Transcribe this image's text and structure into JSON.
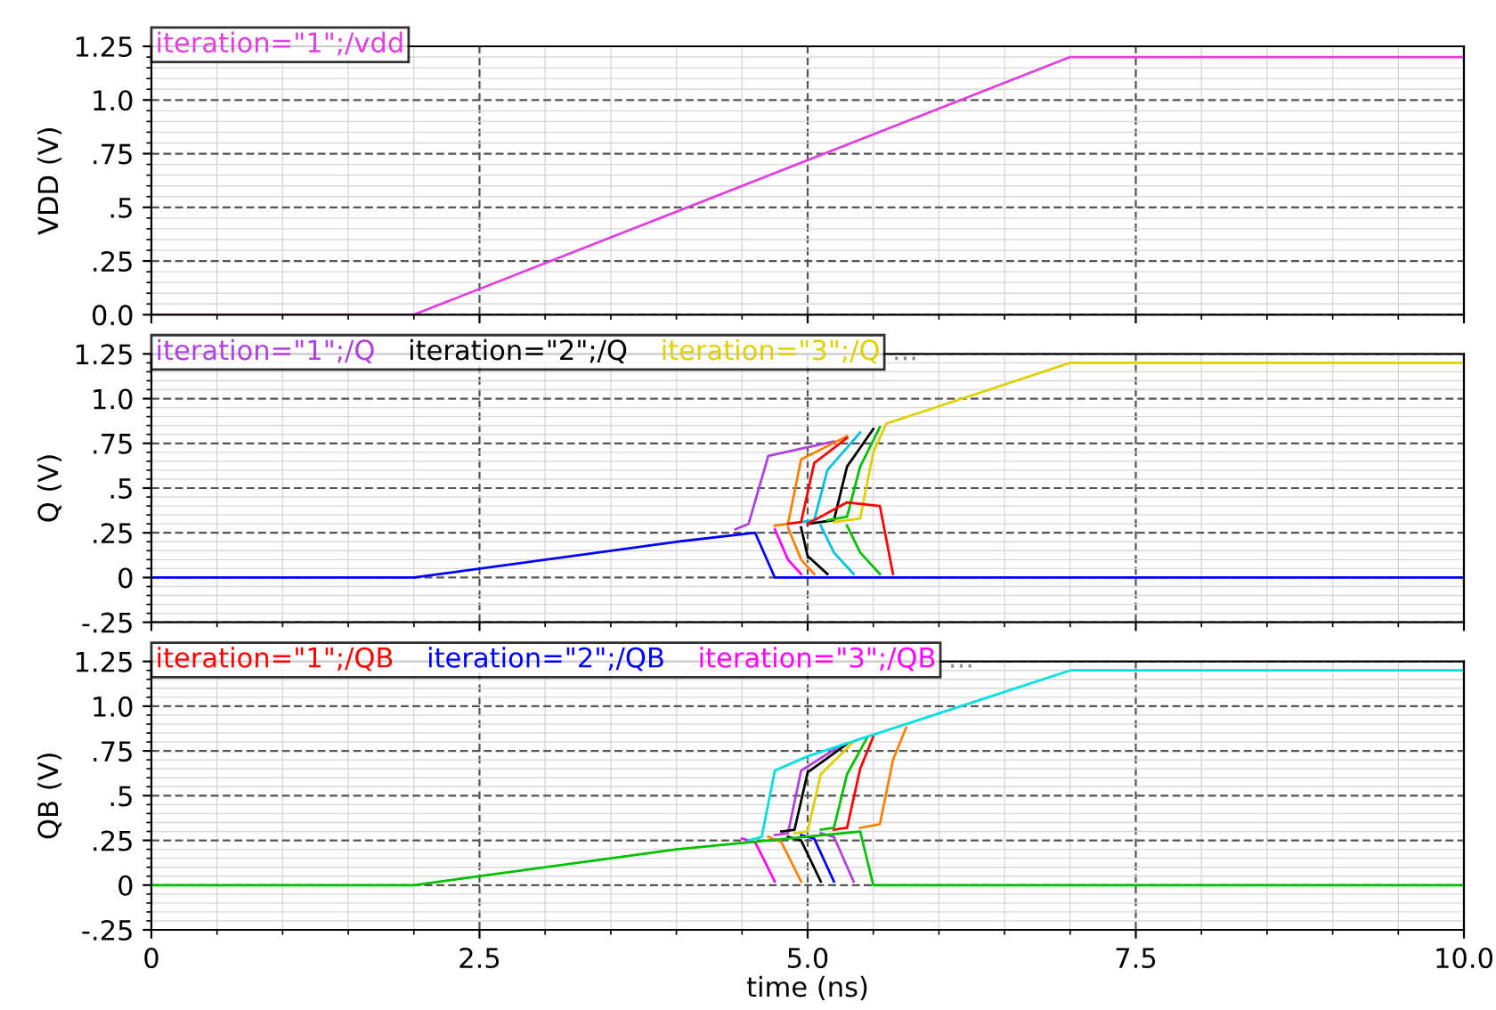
{
  "chart_data": [
    {
      "type": "line",
      "ylabel": "VDD (V)",
      "xlim": [
        0,
        10
      ],
      "ylim": [
        0,
        1.25
      ],
      "yticks": [
        {
          "value": 0,
          "label": "0.0"
        },
        {
          "value": 0.25,
          "label": ".25"
        },
        {
          "value": 0.5,
          "label": ".5"
        },
        {
          "value": 0.75,
          "label": ".75"
        },
        {
          "value": 1.0,
          "label": "1.0"
        },
        1.25
      ],
      "tick_labels": "y",
      "grid": true,
      "legend": "top left",
      "series": [
        {
          "name": "iteration=\"1\";/vdd",
          "color": "#e040e0",
          "x": [
            0,
            2,
            7,
            10
          ],
          "values": [
            0,
            0,
            1.2,
            1.2
          ]
        }
      ]
    },
    {
      "type": "line",
      "ylabel": "Q (V)",
      "xlim": [
        0,
        10
      ],
      "ylim": [
        -0.25,
        1.25
      ],
      "yticks": [
        {
          "value": -0.25,
          "label": "-.25"
        },
        0,
        {
          "value": 0.25,
          "label": ".25"
        },
        {
          "value": 0.5,
          "label": ".5"
        },
        {
          "value": 0.75,
          "label": ".75"
        },
        {
          "value": 1.0,
          "label": "1.0"
        },
        1.25
      ],
      "tick_labels": "y",
      "grid": true,
      "legend": "top left",
      "annotations": [
        "..."
      ],
      "series": [
        {
          "name": "iteration=\"1\";/Q",
          "color": "#b040e0",
          "x": [
            4.45,
            4.55,
            4.7,
            5.2
          ],
          "values": [
            0.27,
            0.3,
            0.68,
            0.76
          ]
        },
        {
          "name": "iteration=\"2\";/Q",
          "color": "#000000",
          "x": [
            5.0,
            5.2,
            5.3,
            5.5
          ],
          "values": [
            0.3,
            0.32,
            0.62,
            0.83
          ]
        },
        {
          "name": "iteration=\"3\";/Q",
          "color": "#e0d000",
          "x": [
            5.2,
            5.4,
            5.5,
            5.6,
            7,
            10
          ],
          "values": [
            0.31,
            0.33,
            0.7,
            0.86,
            1.2,
            1.2
          ]
        },
        {
          "color": "#ff8000",
          "x": [
            4.75,
            4.85,
            4.95,
            5.3
          ],
          "values": [
            0.29,
            0.3,
            0.66,
            0.79
          ]
        },
        {
          "color": "#00c0e0",
          "x": [
            4.95,
            5.05,
            5.15,
            5.4
          ],
          "values": [
            0.31,
            0.32,
            0.6,
            0.81
          ]
        },
        {
          "color": "#ff0000",
          "x": [
            4.85,
            4.95,
            5.05,
            5.3
          ],
          "values": [
            0.3,
            0.31,
            0.64,
            0.78
          ]
        },
        {
          "color": "#00c000",
          "x": [
            5.15,
            5.3,
            5.4,
            5.55
          ],
          "values": [
            0.32,
            0.34,
            0.62,
            0.84
          ]
        },
        {
          "color": "#ff00ff",
          "x": [
            4.75,
            4.85,
            4.95
          ],
          "values": [
            0.27,
            0.1,
            0.02
          ]
        },
        {
          "color": "#000000",
          "x": [
            4.95,
            5.0,
            5.15
          ],
          "values": [
            0.28,
            0.12,
            0.02
          ]
        },
        {
          "color": "#00c0e0",
          "x": [
            5.1,
            5.2,
            5.35
          ],
          "values": [
            0.29,
            0.14,
            0.02
          ]
        },
        {
          "color": "#ff8000",
          "x": [
            4.85,
            4.95,
            5.05
          ],
          "values": [
            0.28,
            0.1,
            0.02
          ]
        },
        {
          "color": "#00c000",
          "x": [
            5.3,
            5.4,
            5.55
          ],
          "values": [
            0.29,
            0.14,
            0.02
          ]
        },
        {
          "color": "#ff0000",
          "x": [
            5.0,
            5.3,
            5.55,
            5.65
          ],
          "values": [
            0.3,
            0.42,
            0.4,
            0.02
          ]
        },
        {
          "color": "#0000ff",
          "x": [
            0,
            2,
            4,
            4.6,
            4.75,
            10
          ],
          "values": [
            0,
            0,
            0.2,
            0.25,
            0,
            0
          ]
        }
      ]
    },
    {
      "type": "line",
      "ylabel": "QB (V)",
      "xlabel": "time (ns)",
      "xlim": [
        0,
        10
      ],
      "ylim": [
        -0.25,
        1.25
      ],
      "xticks": [
        0,
        2.5,
        {
          "value": 5,
          "label": "5.0"
        },
        7.5,
        {
          "value": 10,
          "label": "10.0"
        }
      ],
      "yticks": [
        {
          "value": -0.25,
          "label": "-.25"
        },
        0,
        {
          "value": 0.25,
          "label": ".25"
        },
        {
          "value": 0.5,
          "label": ".5"
        },
        {
          "value": 0.75,
          "label": ".75"
        },
        {
          "value": 1.0,
          "label": "1.0"
        },
        1.25
      ],
      "grid": true,
      "legend": "top left",
      "annotations": [
        "..."
      ],
      "series": [
        {
          "name": "iteration=\"1\";/QB",
          "color": "#ff0000",
          "x": [
            5.2,
            5.3,
            5.4,
            5.5
          ],
          "values": [
            0.31,
            0.32,
            0.65,
            0.83
          ]
        },
        {
          "name": "iteration=\"2\";/QB",
          "color": "#0000ff",
          "x": [
            4.95,
            5.05,
            5.2
          ],
          "values": [
            0.28,
            0.26,
            0.02
          ]
        },
        {
          "name": "iteration=\"3\";/QB",
          "color": "#ff00ff",
          "x": [
            4.5,
            4.6,
            4.75
          ],
          "values": [
            0.26,
            0.24,
            0.02
          ]
        },
        {
          "color": "#ff8000",
          "x": [
            5.4,
            5.55,
            5.65,
            5.75
          ],
          "values": [
            0.32,
            0.34,
            0.7,
            0.88
          ]
        },
        {
          "color": "#e0d000",
          "x": [
            4.9,
            5.0,
            5.1,
            5.35
          ],
          "values": [
            0.29,
            0.3,
            0.62,
            0.8
          ]
        },
        {
          "color": "#b040e0",
          "x": [
            4.75,
            4.85,
            4.95,
            5.25
          ],
          "values": [
            0.28,
            0.29,
            0.64,
            0.78
          ]
        },
        {
          "color": "#000000",
          "x": [
            4.8,
            4.9,
            5.0,
            5.3
          ],
          "values": [
            0.3,
            0.31,
            0.63,
            0.79
          ]
        },
        {
          "color": "#00c000",
          "x": [
            5.1,
            5.2,
            5.3,
            5.45
          ],
          "values": [
            0.31,
            0.32,
            0.62,
            0.82
          ]
        },
        {
          "color": "#000000",
          "x": [
            4.85,
            4.95,
            5.1
          ],
          "values": [
            0.27,
            0.25,
            0.02
          ]
        },
        {
          "color": "#ff8000",
          "x": [
            4.7,
            4.8,
            4.95
          ],
          "values": [
            0.27,
            0.24,
            0.02
          ]
        },
        {
          "color": "#b040e0",
          "x": [
            5.1,
            5.2,
            5.35
          ],
          "values": [
            0.29,
            0.27,
            0.02
          ]
        },
        {
          "color": "#00e0e0",
          "x": [
            4.55,
            4.65,
            4.75,
            5.0,
            7,
            10
          ],
          "values": [
            0.25,
            0.27,
            0.64,
            0.72,
            1.2,
            1.2
          ]
        },
        {
          "color": "#00c000",
          "x": [
            0,
            2,
            4,
            5.4,
            5.5,
            10
          ],
          "values": [
            0,
            0,
            0.2,
            0.3,
            0,
            0
          ]
        }
      ]
    }
  ]
}
